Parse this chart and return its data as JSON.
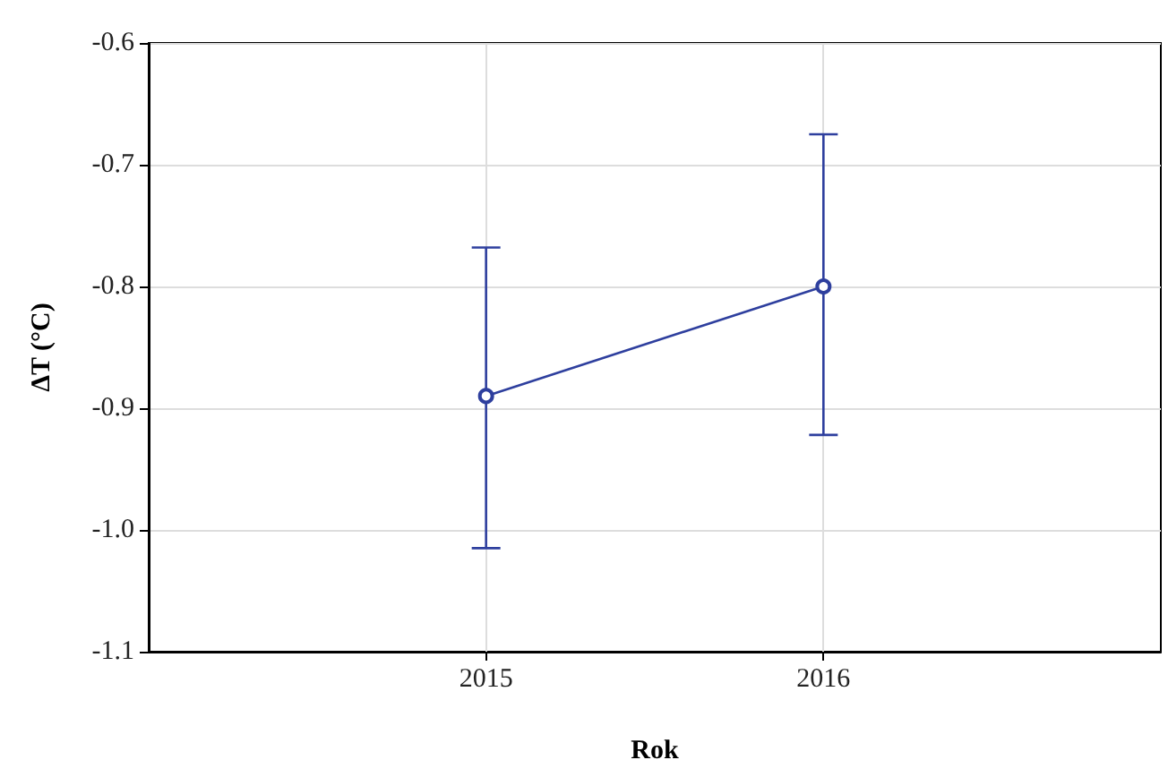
{
  "chart_data": {
    "type": "line",
    "xlabel": "Rok",
    "ylabel": "ΔT (°C)",
    "x": [
      2015,
      2016
    ],
    "series": [
      {
        "color": "#2e3f9e",
        "values": [
          -0.89,
          -0.8
        ],
        "errors": [
          [
            -1.015,
            -0.768
          ],
          [
            -0.922,
            -0.675
          ]
        ]
      }
    ],
    "xlim": [
      2014,
      2017
    ],
    "xticks": [
      2015,
      2016
    ],
    "ylim": [
      -1.1,
      -0.6
    ],
    "yticks": [
      {
        "value": -1.1,
        "label": "-1.1"
      },
      {
        "value": -1,
        "label": "-1.0"
      },
      {
        "value": -0.9,
        "label": "-0.9"
      },
      {
        "value": -0.8,
        "label": "-0.8"
      },
      {
        "value": -0.7,
        "label": "-0.7"
      },
      {
        "value": -0.6,
        "label": "-0.6"
      }
    ],
    "grid": true,
    "marker": "circle",
    "line_style": "solid"
  }
}
